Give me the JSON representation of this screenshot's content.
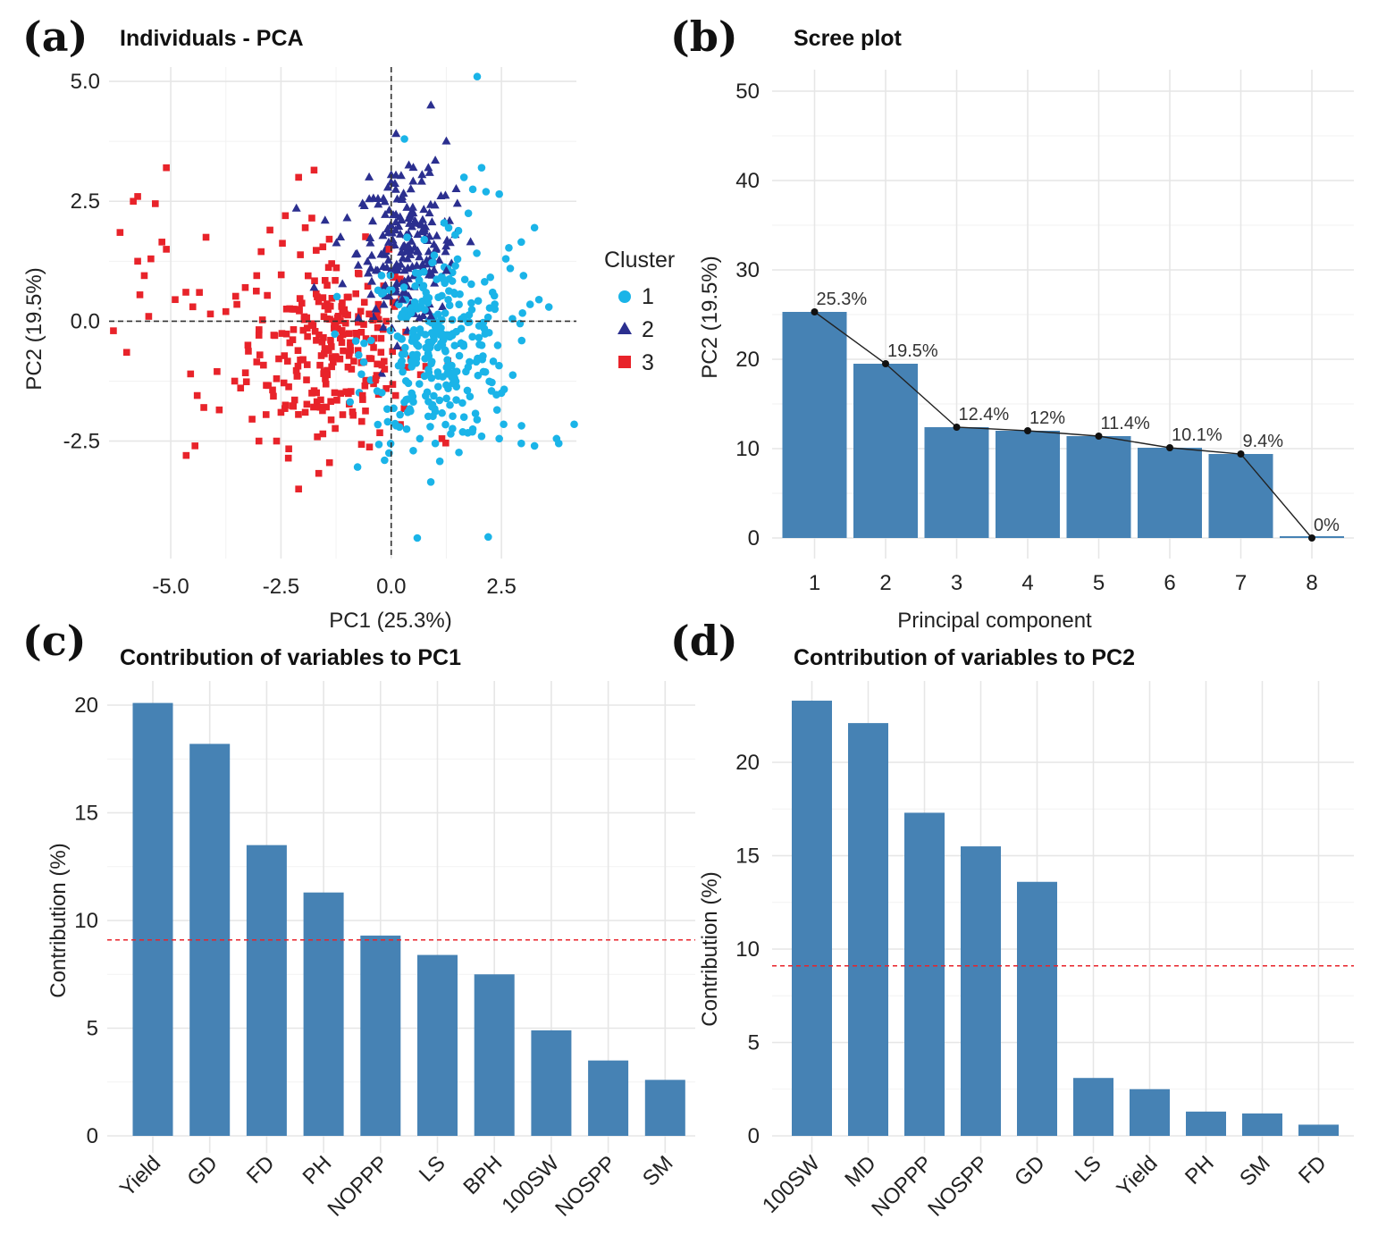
{
  "panels": {
    "a": {
      "letter": "(a)",
      "title": "Individuals - PCA"
    },
    "b": {
      "letter": "(b)",
      "title": "Scree plot"
    },
    "c": {
      "letter": "(c)",
      "title": "Contribution of variables to PC1"
    },
    "d": {
      "letter": "(d)",
      "title": "Contribution of variables to PC2"
    }
  },
  "legend": {
    "title": "Cluster",
    "items": [
      {
        "label": "1",
        "shape": "circle",
        "color": "#1AB4E8"
      },
      {
        "label": "2",
        "shape": "triangle",
        "color": "#2B2F8F"
      },
      {
        "label": "3",
        "shape": "square",
        "color": "#E8232A"
      }
    ]
  },
  "colors": {
    "bar": "#4682B4",
    "ref_line": "#E8232A",
    "line": "#222222"
  },
  "chart_data": [
    {
      "type": "scatter",
      "title": "Individuals - PCA",
      "xlabel": "PC1 (25.3%)",
      "ylabel": "PC2 (19.5%)",
      "xlim": [
        -6.4,
        4.2
      ],
      "ylim": [
        -4.95,
        5.3
      ],
      "xticks": [
        -5.0,
        -2.5,
        0.0,
        2.5
      ],
      "xtick_labels": [
        "-5.0",
        "-2.5",
        "0.0",
        "2.5"
      ],
      "yticks": [
        -2.5,
        0.0,
        2.5,
        5.0
      ],
      "ytick_labels": [
        "-2.5",
        "0.0",
        "2.5",
        "5.0"
      ],
      "reference_lines": {
        "x": 0,
        "y": 0,
        "style": "dashed"
      },
      "series": [
        {
          "name": "1",
          "shape": "circle",
          "color": "#1AB4E8",
          "points": [
            [
              1.95,
              5.1
            ],
            [
              0.3,
              3.8
            ],
            [
              1.65,
              3.0
            ],
            [
              2.05,
              3.2
            ],
            [
              2.15,
              2.7
            ],
            [
              2.45,
              2.65
            ],
            [
              1.85,
              2.75
            ],
            [
              3.25,
              1.95
            ],
            [
              2.95,
              1.65
            ],
            [
              2.6,
              1.3
            ],
            [
              2.7,
              1.1
            ],
            [
              3.0,
              0.95
            ],
            [
              3.15,
              0.35
            ],
            [
              3.35,
              0.45
            ],
            [
              2.75,
              0.05
            ],
            [
              3.75,
              -2.45
            ],
            [
              3.8,
              -2.55
            ],
            [
              4.15,
              -2.15
            ],
            [
              2.95,
              -2.55
            ],
            [
              2.55,
              -2.15
            ],
            [
              2.4,
              -1.85
            ],
            [
              2.45,
              -2.45
            ],
            [
              2.5,
              -1.5
            ],
            [
              3.25,
              -2.6
            ],
            [
              2.2,
              -4.5
            ],
            [
              -0.15,
              -2.9
            ],
            [
              -0.05,
              -2.75
            ],
            [
              0.5,
              -2.7
            ],
            [
              0.65,
              -2.45
            ],
            [
              1.0,
              -2.55
            ],
            [
              1.35,
              -2.35
            ],
            [
              0.2,
              -1.95
            ],
            [
              1.65,
              -2.0
            ],
            [
              1.85,
              -2.25
            ],
            [
              2.05,
              -2.4
            ],
            [
              0.35,
              -2.25
            ],
            [
              2.35,
              0.25
            ],
            [
              2.3,
              0.6
            ],
            [
              1.45,
              1.8
            ],
            [
              1.75,
              2.25
            ],
            [
              0.75,
              1.7
            ],
            [
              1.2,
              2.05
            ]
          ]
        },
        {
          "name": "2",
          "shape": "triangle",
          "color": "#2B2F8F",
          "points": [
            [
              0.9,
              4.5
            ],
            [
              1.25,
              3.75
            ],
            [
              0.7,
              3.05
            ],
            [
              0.4,
              3.25
            ],
            [
              1.0,
              3.35
            ],
            [
              0.0,
              3.05
            ],
            [
              -0.5,
              3.0
            ],
            [
              -2.15,
              2.35
            ],
            [
              -1.5,
              2.1
            ],
            [
              -1.15,
              1.75
            ],
            [
              -1.0,
              2.15
            ],
            [
              -0.65,
              2.45
            ],
            [
              -0.3,
              2.55
            ],
            [
              0.5,
              2.25
            ],
            [
              1.5,
              2.45
            ],
            [
              1.45,
              1.8
            ],
            [
              1.8,
              1.65
            ],
            [
              -1.75,
              0.7
            ],
            [
              -0.35,
              0.25
            ],
            [
              0.25,
              0.45
            ],
            [
              0.9,
              0.1
            ],
            [
              1.25,
              1.05
            ]
          ]
        },
        {
          "name": "3",
          "shape": "square",
          "color": "#E8232A",
          "points": [
            [
              -5.1,
              3.2
            ],
            [
              -5.75,
              2.6
            ],
            [
              -5.85,
              2.5
            ],
            [
              -5.35,
              2.45
            ],
            [
              -6.15,
              1.85
            ],
            [
              -5.2,
              1.65
            ],
            [
              -5.1,
              1.5
            ],
            [
              -5.45,
              1.3
            ],
            [
              -5.75,
              1.25
            ],
            [
              -5.6,
              0.95
            ],
            [
              -5.7,
              0.55
            ],
            [
              -6.3,
              -0.2
            ],
            [
              -6.0,
              -0.65
            ],
            [
              -5.5,
              0.1
            ],
            [
              -4.9,
              0.45
            ],
            [
              -4.5,
              0.3
            ],
            [
              -4.35,
              0.6
            ],
            [
              -4.1,
              0.15
            ],
            [
              -3.75,
              0.2
            ],
            [
              -4.2,
              1.75
            ],
            [
              -4.55,
              -1.1
            ],
            [
              -4.4,
              -1.55
            ],
            [
              -4.25,
              -1.8
            ],
            [
              -3.9,
              -1.85
            ],
            [
              -3.95,
              -1.05
            ],
            [
              -4.65,
              -2.8
            ],
            [
              -4.45,
              -2.6
            ],
            [
              -3.55,
              -1.25
            ],
            [
              -3.25,
              -0.5
            ],
            [
              -3.05,
              -0.85
            ],
            [
              -3.5,
              0.35
            ],
            [
              -2.95,
              1.45
            ],
            [
              -3.05,
              0.95
            ],
            [
              -2.75,
              1.9
            ],
            [
              -2.4,
              2.2
            ],
            [
              -1.75,
              3.15
            ],
            [
              -2.1,
              3.0
            ],
            [
              -1.8,
              2.15
            ],
            [
              -1.55,
              1.55
            ],
            [
              -1.35,
              1.2
            ],
            [
              -2.6,
              -2.5
            ],
            [
              -3.0,
              -2.5
            ],
            [
              -2.1,
              -3.5
            ],
            [
              -2.4,
              -1.75
            ],
            [
              -1.95,
              -1.9
            ],
            [
              -1.4,
              -2.95
            ],
            [
              -1.55,
              -2.35
            ],
            [
              -1.1,
              -1.95
            ],
            [
              -0.65,
              -1.55
            ],
            [
              -0.35,
              -1.2
            ],
            [
              -1.5,
              0.85
            ],
            [
              -1.0,
              0.5
            ],
            [
              -1.25,
              0.0
            ],
            [
              -1.7,
              -0.4
            ],
            [
              -2.0,
              -0.8
            ],
            [
              -2.3,
              -0.45
            ],
            [
              -0.8,
              -0.25
            ],
            [
              -0.4,
              -0.55
            ],
            [
              -0.15,
              -1.0
            ],
            [
              -0.5,
              0.15
            ],
            [
              -1.8,
              -1.5
            ],
            [
              -2.6,
              -1.2
            ],
            [
              -0.9,
              -1.0
            ],
            [
              -1.35,
              -0.95
            ],
            [
              1.15,
              -2.45
            ],
            [
              0.1,
              -1.55
            ],
            [
              -0.75,
              1.0
            ],
            [
              -0.05,
              1.5
            ]
          ]
        }
      ],
      "cloud_note": "dense central region of overlapping points"
    },
    {
      "type": "bar",
      "title": "Scree plot",
      "xlabel": "Principal component",
      "ylabel": "PC2 (19.5%)",
      "categories": [
        "1",
        "2",
        "3",
        "4",
        "5",
        "6",
        "7",
        "8"
      ],
      "values": [
        25.3,
        19.5,
        12.4,
        12.0,
        11.4,
        10.1,
        9.4,
        0.0
      ],
      "data_labels": [
        "25.3%",
        "19.5%",
        "12.4%",
        "12%",
        "11.4%",
        "10.1%",
        "9.4%",
        "0%"
      ],
      "line_overlay": true,
      "ylim": [
        0,
        53
      ],
      "yticks": [
        0,
        10,
        20,
        30,
        40,
        50
      ],
      "ytick_labels": [
        "0",
        "10",
        "20",
        "30",
        "40",
        "50"
      ]
    },
    {
      "type": "bar",
      "title": "Contribution of variables to PC1",
      "xlabel": "",
      "ylabel": "Contribution (%)",
      "categories": [
        "Yield",
        "GD",
        "FD",
        "PH",
        "NOPPP",
        "LS",
        "BPH",
        "100SW",
        "NOSPP",
        "SM"
      ],
      "values": [
        20.1,
        18.2,
        13.5,
        11.3,
        9.3,
        8.4,
        7.5,
        4.9,
        3.5,
        2.6
      ],
      "reference_line": 9.1,
      "ylim": [
        0,
        21.3
      ],
      "yticks": [
        0,
        5,
        10,
        15,
        20
      ],
      "ytick_labels": [
        "0",
        "5",
        "10",
        "15",
        "20"
      ]
    },
    {
      "type": "bar",
      "title": "Contribution of variables to PC2",
      "xlabel": "",
      "ylabel": "Contribution (%)",
      "categories": [
        "100SW",
        "MD",
        "NOPPP",
        "NOSPP",
        "GD",
        "LS",
        "Yield",
        "PH",
        "SM",
        "FD"
      ],
      "values": [
        23.3,
        22.1,
        17.3,
        15.5,
        13.6,
        3.1,
        2.5,
        1.3,
        1.2,
        0.6
      ],
      "reference_line": 9.1,
      "ylim": [
        0,
        23.8
      ],
      "yticks": [
        0,
        5,
        10,
        15,
        20
      ],
      "ytick_labels": [
        "0",
        "5",
        "10",
        "15",
        "20"
      ]
    }
  ]
}
